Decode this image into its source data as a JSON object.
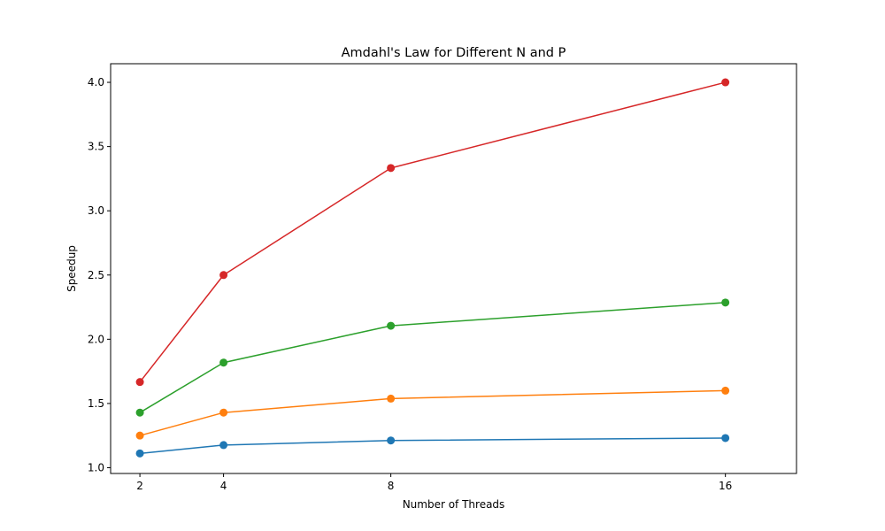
{
  "chart_data": {
    "type": "line",
    "title": "Amdahl's Law for Different N and P",
    "xlabel": "Number of Threads",
    "ylabel": "Speedup",
    "x": [
      2,
      4,
      8,
      16
    ],
    "xticks": [
      "2",
      "4",
      "8",
      "16"
    ],
    "yticks": [
      "1.0",
      "1.5",
      "2.0",
      "2.5",
      "3.0",
      "3.5",
      "4.0"
    ],
    "xlim": [
      1.3,
      17.7
    ],
    "ylim": [
      0.955,
      4.145
    ],
    "grid": false,
    "series": [
      {
        "color": "#1f77b4",
        "values": [
          1.111,
          1.176,
          1.212,
          1.231
        ]
      },
      {
        "color": "#ff7f0e",
        "values": [
          1.25,
          1.429,
          1.538,
          1.6
        ]
      },
      {
        "color": "#2ca02c",
        "values": [
          1.429,
          1.818,
          2.105,
          2.286
        ]
      },
      {
        "color": "#d62728",
        "values": [
          1.667,
          2.5,
          3.333,
          4.0
        ]
      }
    ]
  }
}
